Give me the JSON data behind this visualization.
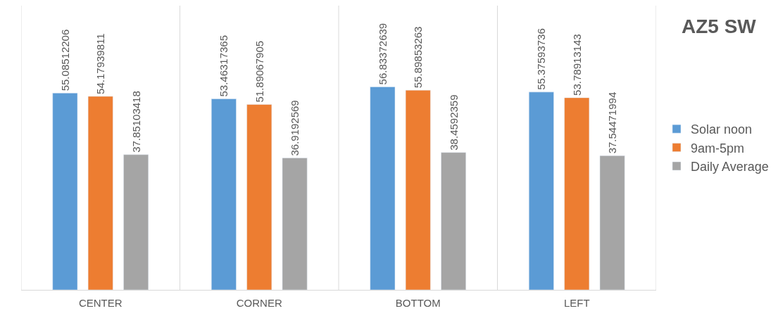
{
  "chart_data": {
    "type": "bar",
    "title": "AZ5 SW",
    "categories": [
      "CENTER",
      "CORNER",
      "BOTTOM",
      "LEFT"
    ],
    "series": [
      {
        "name": "Solar noon",
        "color": "#5b9bd5",
        "values": [
          55.08512206,
          53.46317365,
          56.83372639,
          55.37593736
        ]
      },
      {
        "name": "9am-5pm",
        "color": "#ed7d31",
        "values": [
          54.17939811,
          51.89067905,
          55.89853263,
          53.78913143
        ]
      },
      {
        "name": "Daily Average",
        "color": "#a5a5a5",
        "values": [
          37.85103418,
          36.9192569,
          38.4592359,
          37.54471994
        ]
      }
    ],
    "data_labels": true,
    "grid": "x",
    "legend": "right",
    "tick_labels": "x"
  }
}
